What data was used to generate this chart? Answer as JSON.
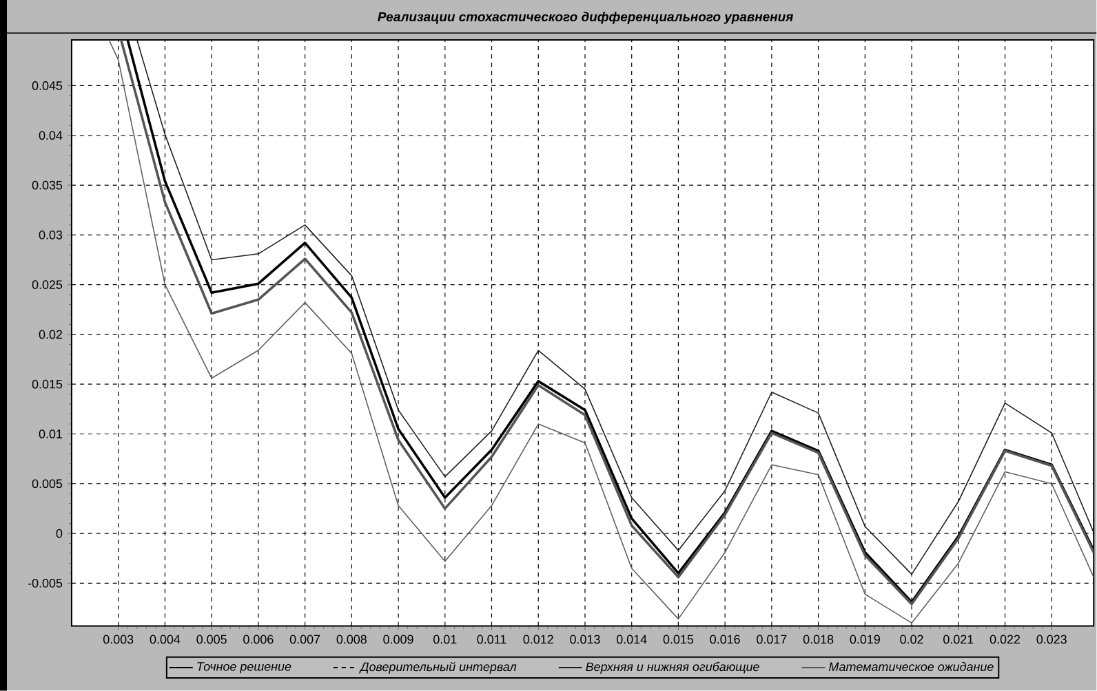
{
  "chart_data": {
    "type": "line",
    "title": "Реализации стохастического дифференциального уравнения",
    "xlim": [
      0.002,
      0.0239
    ],
    "ylim": [
      -0.0093,
      0.0496
    ],
    "xticks": [
      0.003,
      0.004,
      0.005,
      0.006,
      0.007,
      0.008,
      0.009,
      0.01,
      0.011,
      0.012,
      0.013,
      0.014,
      0.015,
      0.016,
      0.017,
      0.018,
      0.019,
      0.02,
      0.021,
      0.022,
      0.023
    ],
    "yticks": [
      -0.005,
      0,
      0.005,
      0.01,
      0.015,
      0.02,
      0.025,
      0.03,
      0.035,
      0.04,
      0.045
    ],
    "grid": true,
    "legend": "bottom",
    "marker": "none",
    "line_style": "solid",
    "series": [
      {
        "name": "Точное решение",
        "color": "#000000",
        "x": [
          0.0032,
          0.004,
          0.005,
          0.006,
          0.007,
          0.008,
          0.009,
          0.01,
          0.011,
          0.012,
          0.013,
          0.014,
          0.015,
          0.016,
          0.017,
          0.018,
          0.019,
          0.02,
          0.021,
          0.022,
          0.023,
          0.0239
        ],
        "values": [
          0.0496,
          0.0354,
          0.0242,
          0.0251,
          0.0292,
          0.0237,
          0.0105,
          0.0036,
          0.0084,
          0.0153,
          0.0124,
          0.0015,
          -0.004,
          0.0021,
          0.0103,
          0.0083,
          -0.0019,
          -0.0069,
          -0.0003,
          0.0084,
          0.0069,
          -0.0017
        ]
      },
      {
        "name": "Доверительный интервал",
        "color": "#000000",
        "line_style": "dashed"
      },
      {
        "name": "Верхняя и нижняя огибающие",
        "color": "#202020",
        "x": [
          0.0034,
          0.004,
          0.005,
          0.006,
          0.007,
          0.008,
          0.009,
          0.01,
          0.011,
          0.012,
          0.013,
          0.014,
          0.015,
          0.016,
          0.017,
          0.018,
          0.019,
          0.02,
          0.021,
          0.022,
          0.023,
          0.0239
        ],
        "values": [
          0.0496,
          0.0401,
          0.0275,
          0.0281,
          0.031,
          0.0259,
          0.0124,
          0.0057,
          0.0103,
          0.0184,
          0.0145,
          0.0036,
          -0.0017,
          0.0043,
          0.0142,
          0.0121,
          0.0007,
          -0.0041,
          0.0032,
          0.0131,
          0.0101,
          0.0001
        ]
      },
      {
        "color": "#606060",
        "x": [
          0.0028,
          0.003,
          0.004,
          0.005,
          0.006,
          0.007,
          0.008,
          0.009,
          0.01,
          0.011,
          0.012,
          0.013,
          0.014,
          0.015,
          0.016,
          0.017,
          0.018,
          0.019,
          0.02,
          0.021,
          0.022,
          0.023,
          0.0239
        ],
        "values": [
          0.0496,
          0.0476,
          0.025,
          0.0156,
          0.0184,
          0.0232,
          0.0181,
          0.0028,
          -0.0028,
          0.0028,
          0.011,
          0.0091,
          -0.0035,
          -0.0086,
          -0.0019,
          0.0069,
          0.0059,
          -0.0061,
          -0.009,
          -0.003,
          0.0062,
          0.005,
          -0.0044
        ]
      },
      {
        "name": "Математическое ожидание",
        "color": "#555555",
        "x": [
          0.00306,
          0.004,
          0.005,
          0.006,
          0.007,
          0.008,
          0.009,
          0.01,
          0.011,
          0.012,
          0.013,
          0.014,
          0.015,
          0.016,
          0.017,
          0.018,
          0.019,
          0.02,
          0.021,
          0.022,
          0.023,
          0.0239
        ],
        "values": [
          0.0496,
          0.0333,
          0.0221,
          0.0235,
          0.0276,
          0.0222,
          0.0094,
          0.0025,
          0.0077,
          0.0149,
          0.0119,
          0.0008,
          -0.0044,
          0.0019,
          0.0101,
          0.0081,
          -0.0022,
          -0.0071,
          -0.0005,
          0.0083,
          0.0068,
          -0.0019
        ]
      }
    ]
  }
}
